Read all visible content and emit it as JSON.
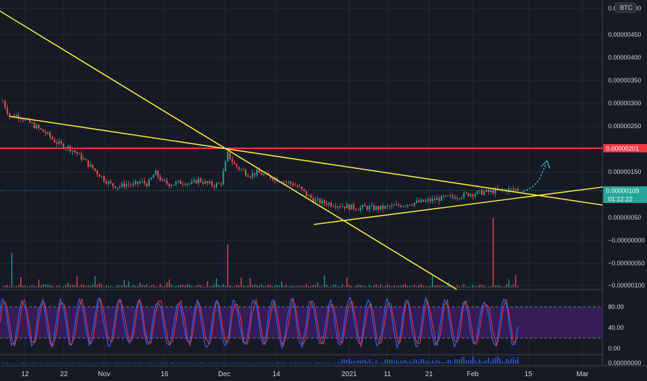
{
  "currency_badge": "BTC",
  "price_axis": [
    "0.00000500",
    "0.00000450",
    "0.00000400",
    "0.00000350",
    "0.00000300",
    "0.00000250",
    "0.00000150",
    "0.00000050",
    "−0.00000000",
    "−0.00000050",
    "−0.00000100"
  ],
  "price_labels": {
    "red_line": "0.00000201",
    "last_price": "0.00000109",
    "countdown": "01:12:22"
  },
  "stoch_axis": [
    "80.00",
    "40.00",
    "0.00"
  ],
  "bottom_axis": [
    "0.00000000"
  ],
  "time_axis": [
    "12",
    "22",
    "Nov",
    "16",
    "Dec",
    "14",
    "2021",
    "11",
    "21",
    "Feb",
    "15",
    "Mar"
  ],
  "colors": {
    "background": "#161a25",
    "grid": "#242833",
    "trendline": "#ffeb3b",
    "resistance": "#f23645",
    "price_label_bg": "#26a69a",
    "stoch_band": "#3a1f63",
    "stoch_k": "#2962ff",
    "stoch_d": "#f23645",
    "projection": "#26c6da"
  },
  "chart_data": {
    "type": "line",
    "ylim": [
      -1e-06,
      5.2e-06
    ],
    "resistance_level": 2.01e-06,
    "last_price": 1.09e-06,
    "series": [
      {
        "values": [
          3e-06,
          2.65e-06,
          2.7e-06,
          2.6e-06,
          2.5e-06,
          2.4e-06,
          2.3e-06,
          2.15e-06,
          2.05e-06,
          2e-06,
          1.9e-06,
          1.75e-06,
          1.6e-06,
          1.45e-06,
          1.3e-06,
          1.18e-06,
          1.15e-06,
          1.2e-06,
          1.18e-06,
          1.25e-06,
          1.2e-06,
          1.45e-06,
          1.25e-06,
          1.2e-06,
          1.22e-06,
          1.25e-06,
          1.2e-06,
          1.3e-06,
          1.22e-06,
          1.18e-06,
          1.2e-06,
          1.85e-06,
          1.6e-06,
          1.5e-06,
          1.4e-06,
          1.45e-06,
          1.4e-06,
          1.35e-06,
          1.3e-06,
          1.25e-06,
          1.2e-06,
          1.1e-06,
          9.5e-07,
          8.5e-07,
          8e-07,
          7.8e-07,
          7.5e-07,
          7.2e-07,
          7e-07,
          6.8e-07,
          7e-07,
          6.8e-07,
          6.8e-07,
          7e-07,
          7.2e-07,
          7.5e-07,
          7.8e-07,
          8e-07,
          8.2e-07,
          8.5e-07,
          8.8e-07,
          9e-07,
          9.2e-07,
          9.5e-07,
          9.8e-07,
          1e-06,
          1.02e-06,
          1.03e-06,
          1.05e-06,
          1.07e-06,
          1.08e-06,
          1.09e-06
        ]
      }
    ]
  }
}
